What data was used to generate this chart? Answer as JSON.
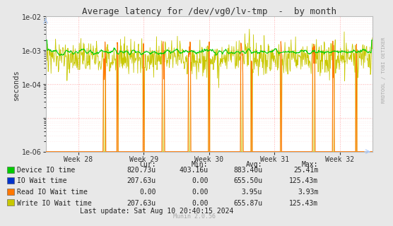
{
  "title": "Average latency for /dev/vg0/lv-tmp  -  by month",
  "ylabel": "seconds",
  "xtick_labels": [
    "Week 28",
    "Week 29",
    "Week 30",
    "Week 31",
    "Week 32"
  ],
  "xtick_pos": [
    0.1,
    0.3,
    0.5,
    0.7,
    0.9
  ],
  "ylim_min": 1e-06,
  "ylim_max": 0.01,
  "bg_color": "#e8e8e8",
  "plot_bg_color": "#ffffff",
  "legend_items": [
    {
      "label": "Device IO time",
      "color": "#00cc00"
    },
    {
      "label": "IO Wait time",
      "color": "#0033cc"
    },
    {
      "label": "Read IO Wait time",
      "color": "#ff7700"
    },
    {
      "label": "Write IO Wait time",
      "color": "#c8c800"
    }
  ],
  "table_headers": [
    "Cur:",
    "Min:",
    "Avg:",
    "Max:"
  ],
  "table_rows": [
    [
      "820.73u",
      "403.16u",
      "883.40u",
      "25.41m"
    ],
    [
      "207.63u",
      "0.00",
      "655.50u",
      "125.43m"
    ],
    [
      "0.00",
      "0.00",
      "3.95u",
      "3.93m"
    ],
    [
      "207.63u",
      "0.00",
      "655.87u",
      "125.43m"
    ]
  ],
  "last_update": "Last update: Sat Aug 10 20:40:15 2024",
  "munin_version": "Munin 2.0.56",
  "rrdtool_label": "RRDTOOL / TOBI OETIKER",
  "n_points": 800
}
